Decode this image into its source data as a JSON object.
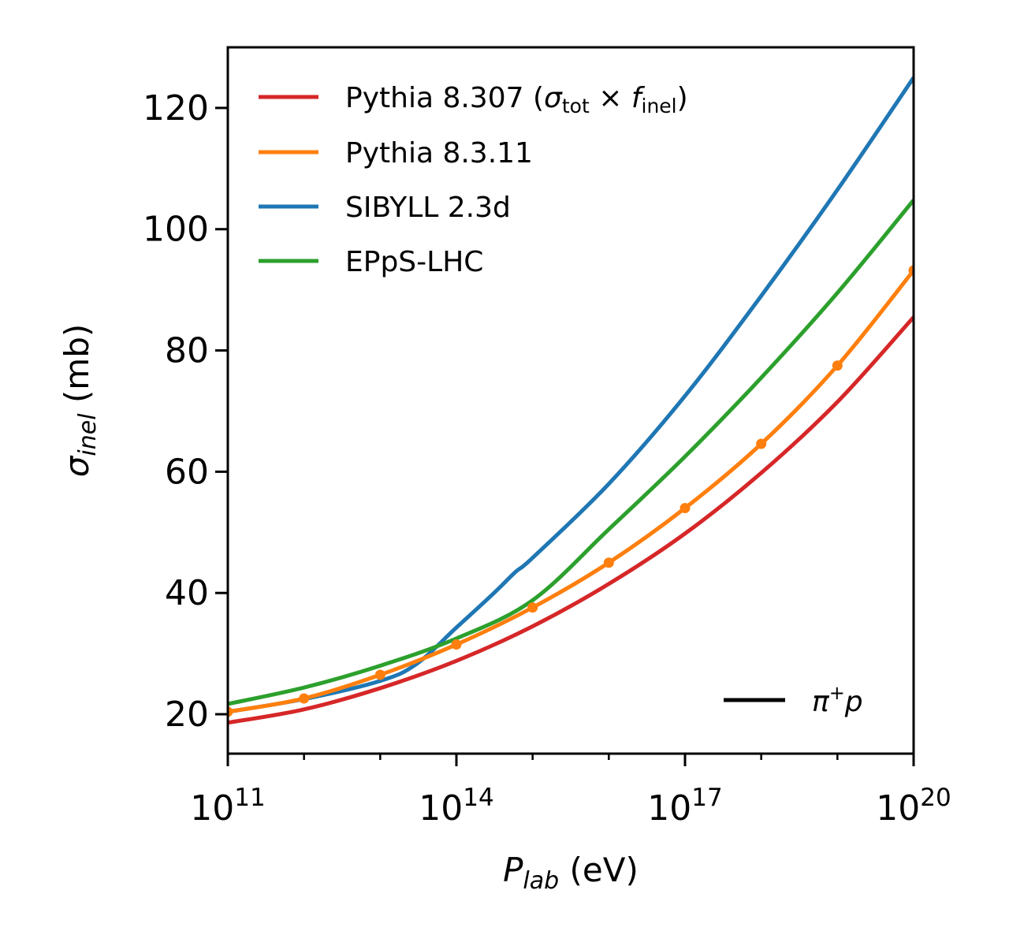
{
  "chart_data": {
    "type": "line",
    "xscale": "log",
    "x_unit": "eV",
    "xlim": [
      100000000000.0,
      1e+20
    ],
    "ylim": [
      13.5,
      130
    ],
    "grid": false,
    "legend_position": "upper-left",
    "xlabel": {
      "symbol": "P",
      "subscript": "lab",
      "unit": "(eV)"
    },
    "ylabel": {
      "symbol": "σ",
      "subscript": "inel",
      "unit": "(mb)"
    },
    "xticks": [
      {
        "base": "10",
        "exp": "11",
        "value": 100000000000.0
      },
      {
        "base": "10",
        "exp": "14",
        "value": 100000000000000.0
      },
      {
        "base": "10",
        "exp": "17",
        "value": 1e+17
      },
      {
        "base": "10",
        "exp": "20",
        "value": 1e+20
      }
    ],
    "yticks": [
      "20",
      "40",
      "60",
      "80",
      "100",
      "120"
    ],
    "series": [
      {
        "name": "Pythia 8.307",
        "name_suffix": {
          "open": " (",
          "sigma": "σ",
          "tot_sub": "tot",
          "times": " × ",
          "f": "f",
          "inel_sub": "inel",
          "close": ")"
        },
        "color": "#d62728",
        "x": [
          100000000000.0,
          1000000000000.0,
          10000000000000.0,
          100000000000000.0,
          1000000000000000.0,
          1e+16,
          1e+17,
          1e+18,
          1e+19,
          1e+20
        ],
        "y": [
          18.6,
          20.8,
          24.3,
          28.8,
          34.5,
          41.5,
          49.8,
          59.8,
          71.5,
          85.5
        ]
      },
      {
        "name": "Pythia 8.3.11",
        "color": "#ff7f0e",
        "markers": true,
        "x": [
          100000000000.0,
          1000000000000.0,
          10000000000000.0,
          100000000000000.0,
          1000000000000000.0,
          1e+16,
          1e+17,
          1e+18,
          1e+19,
          1e+20
        ],
        "y": [
          20.4,
          22.6,
          26.5,
          31.5,
          37.6,
          45.0,
          54.0,
          64.6,
          77.5,
          93.2
        ]
      },
      {
        "name": "SIBYLL 2.3d",
        "color": "#1f77b4",
        "x": [
          100000000000.0,
          1000000000000.0,
          10000000000000.0,
          30000000000000.0,
          100000000000000.0,
          300000000000000.0,
          600000000000000.0,
          1000000000000000.0,
          1e+16,
          1e+17,
          1e+18,
          1e+19,
          1e+20
        ],
        "y": [
          20.4,
          22.5,
          25.5,
          28.3,
          34.3,
          39.8,
          43.5,
          45.8,
          58.0,
          72.5,
          89.0,
          106.5,
          125.0
        ]
      },
      {
        "name": "EPpS-LHC",
        "color": "#2ca02c",
        "x": [
          100000000000.0,
          1000000000000.0,
          10000000000000.0,
          100000000000000.0,
          1000000000000000.0,
          1e+16,
          1e+17,
          1e+18,
          1e+19,
          1e+20
        ],
        "y": [
          21.7,
          24.4,
          28.0,
          32.5,
          38.8,
          50.5,
          62.5,
          75.5,
          89.5,
          104.8
        ]
      }
    ],
    "annotation": {
      "text_symbol": "π",
      "text_sup": "+",
      "text_tail": "p",
      "line_color": "#000000"
    }
  }
}
